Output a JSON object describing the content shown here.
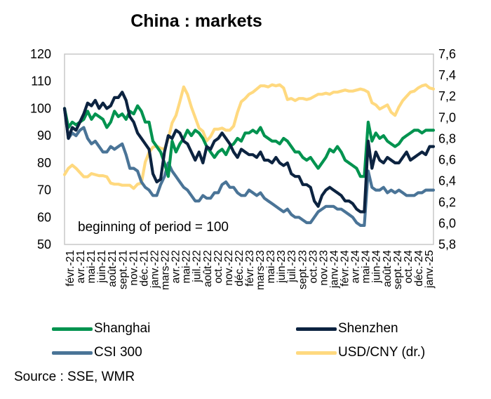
{
  "chart_data": {
    "type": "line",
    "title": "China : markets",
    "annotation": "beginning of period = 100",
    "source": "Source : SSE, WMR",
    "xlabel": "",
    "ylabel": "",
    "y_left": {
      "range": [
        50,
        120
      ],
      "ticks": [
        "120",
        "110",
        "100",
        "90",
        "80",
        "70",
        "60",
        "50"
      ],
      "tick_values": [
        120,
        110,
        100,
        90,
        80,
        70,
        60,
        50
      ]
    },
    "y_right": {
      "range": [
        5.8,
        7.6
      ],
      "ticks": [
        "7,6",
        "7,4",
        "7,2",
        "7,0",
        "6,8",
        "6,6",
        "6,4",
        "6,2",
        "6,0",
        "5,8"
      ],
      "tick_values": [
        7.6,
        7.4,
        7.2,
        7.0,
        6.8,
        6.6,
        6.4,
        6.2,
        6.0,
        5.8
      ]
    },
    "x_ticks": [
      "févr.-21",
      "avr.-21",
      "mai-21",
      "juin-21",
      "août-21",
      "sept.-21",
      "nov.-21",
      "déc.-21",
      "janv.-22",
      "mars-22",
      "avr.-22",
      "mai-22",
      "juil.-22",
      "août-22",
      "oct.-22",
      "nov.-22",
      "déc.-22",
      "févr.-23",
      "mars-23",
      "mai-23",
      "juin-23",
      "juil.-23",
      "sept.-23",
      "oct.-23",
      "nov.-23",
      "janv.-24",
      "févr.-24",
      "avr.-24",
      "mai-24",
      "juin-24",
      "août-24",
      "sept.-24",
      "oct.-24",
      "déc.-24",
      "janv.-25"
    ],
    "grid": false,
    "legend_position": "bottom",
    "x_note": "x is month index from févr.-21 (0) to end of janv.-25 (48)",
    "series": [
      {
        "name": "Shanghai",
        "axis": "left",
        "color": "#00934F",
        "x": [
          0,
          0.5,
          1,
          1.5,
          2,
          2.5,
          3,
          3.5,
          4,
          4.5,
          5,
          5.5,
          6,
          6.5,
          7,
          7.5,
          8,
          8.5,
          9,
          9.5,
          10,
          10.5,
          11,
          11.5,
          12,
          12.5,
          13,
          13.5,
          14,
          14.5,
          15,
          15.5,
          16,
          16.5,
          17,
          17.5,
          18,
          18.5,
          19,
          19.5,
          20,
          20.5,
          21,
          21.5,
          22,
          22.5,
          23,
          23.5,
          24,
          24.5,
          25,
          25.5,
          26,
          26.5,
          27,
          27.5,
          28,
          28.5,
          29,
          29.5,
          30,
          30.5,
          31,
          31.5,
          32,
          32.5,
          33,
          33.5,
          34,
          34.5,
          35,
          35.5,
          36,
          36.5,
          37,
          37.5,
          38,
          38.5,
          39,
          39.5,
          40,
          40.5,
          41,
          41.5,
          42,
          42.5,
          43,
          43.5,
          44,
          44.5,
          45,
          45.5,
          46,
          46.5,
          47,
          47.5,
          48
        ],
        "y": [
          100,
          93,
          95,
          94,
          95,
          96,
          99,
          96,
          98,
          97,
          96,
          93,
          95,
          99,
          97,
          98,
          96,
          99,
          98,
          101,
          99,
          95,
          95,
          88,
          86,
          84,
          80,
          75,
          88,
          84,
          87,
          89,
          92,
          90,
          92,
          91,
          89,
          86,
          84,
          82,
          84,
          85,
          83,
          86,
          87,
          89,
          88,
          91,
          91,
          92,
          91,
          93,
          90,
          89,
          88,
          88,
          87,
          89,
          88,
          86,
          84,
          84,
          82,
          81,
          82,
          80,
          78,
          80,
          82,
          85,
          84,
          86,
          84,
          81,
          80,
          79,
          78,
          75,
          75,
          95,
          88,
          91,
          89,
          90,
          88,
          87,
          86,
          87,
          89,
          90,
          91,
          92,
          92,
          91,
          92,
          92,
          92
        ]
      },
      {
        "name": "Shenzhen",
        "axis": "left",
        "color": "#0C2340",
        "x": [
          0,
          0.5,
          1,
          1.5,
          2,
          2.5,
          3,
          3.5,
          4,
          4.5,
          5,
          5.5,
          6,
          6.5,
          7,
          7.5,
          8,
          8.5,
          9,
          9.5,
          10,
          10.5,
          11,
          11.5,
          12,
          12.5,
          13,
          13.5,
          14,
          14.5,
          15,
          15.5,
          16,
          16.5,
          17,
          17.5,
          18,
          18.5,
          19,
          19.5,
          20,
          20.5,
          21,
          21.5,
          22,
          22.5,
          23,
          23.5,
          24,
          24.5,
          25,
          25.5,
          26,
          26.5,
          27,
          27.5,
          28,
          28.5,
          29,
          29.5,
          30,
          30.5,
          31,
          31.5,
          32,
          32.5,
          33,
          33.5,
          34,
          34.5,
          35,
          35.5,
          36,
          36.5,
          37,
          37.5,
          38,
          38.5,
          39,
          39.5,
          40,
          40.5,
          41,
          41.5,
          42,
          42.5,
          43,
          43.5,
          44,
          44.5,
          45,
          45.5,
          46,
          46.5,
          47,
          47.5,
          48
        ],
        "y": [
          100,
          89,
          93,
          92,
          95,
          98,
          102,
          101,
          103,
          100,
          102,
          100,
          101,
          104,
          104,
          106,
          103,
          97,
          95,
          91,
          89,
          87,
          85,
          76,
          73,
          74,
          84,
          90,
          89,
          92,
          91,
          88,
          87,
          84,
          81,
          84,
          80,
          86,
          85,
          88,
          89,
          91,
          89,
          87,
          84,
          82,
          85,
          84,
          83,
          83,
          82,
          84,
          81,
          81,
          80,
          82,
          80,
          79,
          80,
          76,
          75,
          75,
          72,
          72,
          71,
          66,
          64,
          68,
          70,
          71,
          70,
          69,
          68,
          66,
          66,
          65,
          63,
          62,
          62,
          88,
          78,
          84,
          81,
          80,
          82,
          81,
          80,
          80,
          82,
          84,
          81,
          82,
          83,
          84,
          83,
          86,
          86
        ]
      },
      {
        "name": "CSI 300",
        "axis": "left",
        "color": "#4A7497",
        "x": [
          0,
          0.5,
          1,
          1.5,
          2,
          2.5,
          3,
          3.5,
          4,
          4.5,
          5,
          5.5,
          6,
          6.5,
          7,
          7.5,
          8,
          8.5,
          9,
          9.5,
          10,
          10.5,
          11,
          11.5,
          12,
          12.5,
          13,
          13.5,
          14,
          14.5,
          15,
          15.5,
          16,
          16.5,
          17,
          17.5,
          18,
          18.5,
          19,
          19.5,
          20,
          20.5,
          21,
          21.5,
          22,
          22.5,
          23,
          23.5,
          24,
          24.5,
          25,
          25.5,
          26,
          26.5,
          27,
          27.5,
          28,
          28.5,
          29,
          29.5,
          30,
          30.5,
          31,
          31.5,
          32,
          32.5,
          33,
          33.5,
          34,
          34.5,
          35,
          35.5,
          36,
          36.5,
          37,
          37.5,
          38,
          38.5,
          39,
          39.5,
          40,
          40.5,
          41,
          41.5,
          42,
          42.5,
          43,
          43.5,
          44,
          44.5,
          45,
          45.5,
          46,
          46.5,
          47,
          47.5,
          48
        ],
        "y": [
          100,
          89,
          91,
          90,
          92,
          93,
          89,
          87,
          88,
          86,
          84,
          84,
          86,
          85,
          86,
          87,
          83,
          78,
          78,
          77,
          73,
          71,
          70,
          68,
          68,
          72,
          75,
          80,
          77,
          75,
          73,
          71,
          70,
          68,
          66,
          66,
          68,
          67,
          67,
          69,
          69,
          72,
          73,
          71,
          71,
          69,
          68,
          68,
          70,
          69,
          68,
          69,
          67,
          66,
          65,
          64,
          63,
          62,
          63,
          61,
          60,
          60,
          59,
          58,
          58,
          60,
          62,
          63,
          64,
          64,
          64,
          63,
          63,
          62,
          61,
          60,
          58,
          57,
          57,
          77,
          71,
          70,
          70,
          71,
          69,
          70,
          69,
          70,
          69,
          68,
          68,
          68,
          69,
          69,
          70,
          70,
          70
        ]
      },
      {
        "name": "USD/CNY (dr.)",
        "axis": "right",
        "color": "#FFD97F",
        "x": [
          0,
          0.5,
          1,
          1.5,
          2,
          2.5,
          3,
          3.5,
          4,
          4.5,
          5,
          5.5,
          6,
          6.5,
          7,
          7.5,
          8,
          8.5,
          9,
          9.5,
          10,
          10.5,
          11,
          11.5,
          12,
          12.5,
          13,
          13.5,
          14,
          14.5,
          15,
          15.5,
          16,
          16.5,
          17,
          17.5,
          18,
          18.5,
          19,
          19.5,
          20,
          20.5,
          21,
          21.5,
          22,
          22.5,
          23,
          23.5,
          24,
          24.5,
          25,
          25.5,
          26,
          26.5,
          27,
          27.5,
          28,
          28.5,
          29,
          29.5,
          30,
          30.5,
          31,
          31.5,
          32,
          32.5,
          33,
          33.5,
          34,
          34.5,
          35,
          35.5,
          36,
          36.5,
          37,
          37.5,
          38,
          38.5,
          39,
          39.5,
          40,
          40.5,
          41,
          41.5,
          42,
          42.5,
          43,
          43.5,
          44,
          44.5,
          45,
          45.5,
          46,
          46.5,
          47,
          47.5,
          48
        ],
        "y": [
          6.46,
          6.52,
          6.55,
          6.52,
          6.48,
          6.44,
          6.44,
          6.47,
          6.46,
          6.45,
          6.45,
          6.44,
          6.38,
          6.37,
          6.37,
          6.36,
          6.36,
          6.36,
          6.33,
          6.37,
          6.38,
          6.58,
          6.67,
          6.72,
          6.73,
          6.71,
          6.7,
          6.8,
          6.95,
          7.02,
          7.15,
          7.29,
          7.22,
          7.1,
          7.0,
          6.9,
          6.87,
          6.78,
          6.82,
          6.89,
          6.89,
          6.9,
          6.88,
          6.88,
          6.92,
          7.05,
          7.15,
          7.18,
          7.22,
          7.24,
          7.27,
          7.3,
          7.3,
          7.29,
          7.31,
          7.3,
          7.31,
          7.28,
          7.17,
          7.18,
          7.16,
          7.18,
          7.18,
          7.17,
          7.18,
          7.2,
          7.22,
          7.22,
          7.23,
          7.22,
          7.24,
          7.24,
          7.25,
          7.26,
          7.25,
          7.25,
          7.26,
          7.27,
          7.26,
          7.24,
          7.14,
          7.12,
          7.08,
          7.1,
          7.12,
          7.05,
          7.02,
          7.1,
          7.16,
          7.2,
          7.24,
          7.25,
          7.28,
          7.3,
          7.31,
          7.28,
          7.27
        ]
      }
    ]
  }
}
